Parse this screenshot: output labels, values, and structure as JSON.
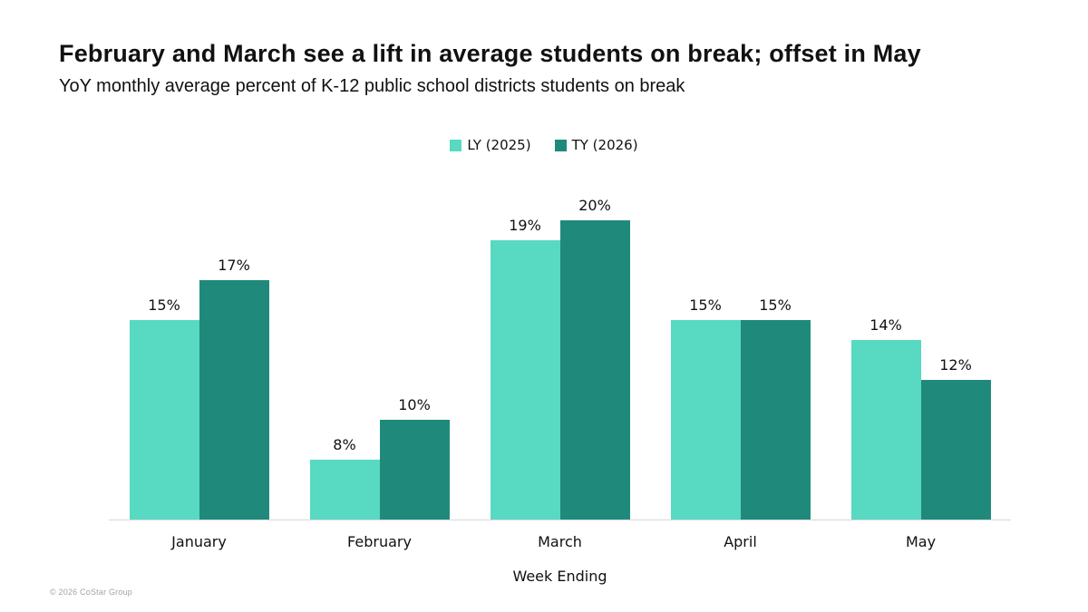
{
  "page": {
    "title": "February and March see a lift in average students on break; offset in May",
    "subtitle": "YoY monthly average percent of K-12 public school districts students on break",
    "footer": "© 2026 CoStar Group"
  },
  "chart_data": {
    "type": "bar",
    "title": "February and March see a lift in average students on break; offset in May",
    "subtitle": "YoY monthly average percent of K-12 public school districts students on break",
    "categories": [
      "January",
      "February",
      "March",
      "April",
      "May"
    ],
    "series": [
      {
        "name": "LY (2025)",
        "color": "#58D9C1",
        "values": [
          15,
          8,
          19,
          15,
          14
        ]
      },
      {
        "name": "TY (2026)",
        "color": "#1F8A7B",
        "values": [
          17,
          10,
          20,
          15,
          12
        ]
      }
    ],
    "data_label_format": "{v}%",
    "xlabel": "Week Ending",
    "ylabel": "",
    "ylim": [
      5,
      21.95
    ],
    "y_axis_visible": false,
    "grid": false,
    "legend_position": "top-center",
    "bar_gap_within_group": 0
  }
}
